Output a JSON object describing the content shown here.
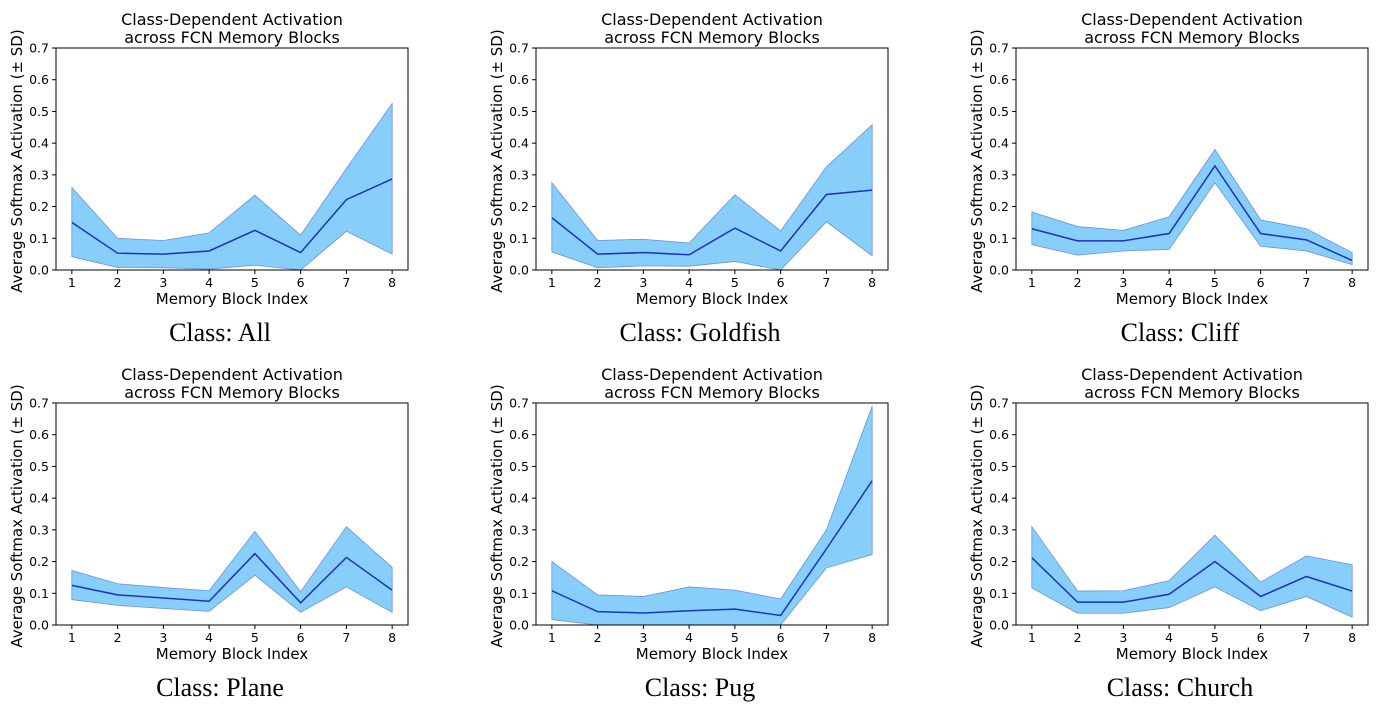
{
  "chart_data": [
    {
      "type": "line",
      "title": "Class-Dependent Activation\nacross FCN Memory Blocks",
      "xlabel": "Memory Block Index",
      "ylabel": "Average Softmax Activation (± SD)",
      "caption": "Class: All",
      "x": [
        1,
        2,
        3,
        4,
        5,
        6,
        7,
        8
      ],
      "ylim": [
        0.0,
        0.7
      ],
      "yticks": [
        "0.0",
        "0.1",
        "0.2",
        "0.3",
        "0.4",
        "0.5",
        "0.6",
        "0.7"
      ],
      "series": [
        {
          "mean": [
            0.15,
            0.053,
            0.05,
            0.06,
            0.125,
            0.055,
            0.222,
            0.287
          ],
          "upper": [
            0.26,
            0.1,
            0.093,
            0.117,
            0.236,
            0.11,
            0.32,
            0.525
          ],
          "lower": [
            0.042,
            0.008,
            0.007,
            0.003,
            0.015,
            0.0,
            0.122,
            0.05
          ]
        }
      ]
    },
    {
      "type": "line",
      "title": "Class-Dependent Activation\nacross FCN Memory Blocks",
      "xlabel": "Memory Block Index",
      "ylabel": "Average Softmax Activation (± SD)",
      "caption": "Class: Goldfish",
      "x": [
        1,
        2,
        3,
        4,
        5,
        6,
        7,
        8
      ],
      "ylim": [
        0.0,
        0.7
      ],
      "yticks": [
        "0.0",
        "0.1",
        "0.2",
        "0.3",
        "0.4",
        "0.5",
        "0.6",
        "0.7"
      ],
      "series": [
        {
          "mean": [
            0.165,
            0.05,
            0.055,
            0.048,
            0.132,
            0.06,
            0.238,
            0.252
          ],
          "upper": [
            0.275,
            0.093,
            0.097,
            0.085,
            0.237,
            0.123,
            0.325,
            0.458
          ],
          "lower": [
            0.057,
            0.007,
            0.013,
            0.012,
            0.027,
            0.0,
            0.152,
            0.045
          ]
        }
      ]
    },
    {
      "type": "line",
      "title": "Class-Dependent Activation\nacross FCN Memory Blocks",
      "xlabel": "Memory Block Index",
      "ylabel": "Average Softmax Activation (± SD)",
      "caption": "Class: Cliff",
      "x": [
        1,
        2,
        3,
        4,
        5,
        6,
        7,
        8
      ],
      "ylim": [
        0.0,
        0.7
      ],
      "yticks": [
        "0.0",
        "0.1",
        "0.2",
        "0.3",
        "0.4",
        "0.5",
        "0.6",
        "0.7"
      ],
      "series": [
        {
          "mean": [
            0.13,
            0.092,
            0.092,
            0.115,
            0.328,
            0.115,
            0.095,
            0.03
          ],
          "upper": [
            0.183,
            0.137,
            0.125,
            0.168,
            0.38,
            0.158,
            0.13,
            0.055
          ],
          "lower": [
            0.08,
            0.047,
            0.06,
            0.065,
            0.275,
            0.075,
            0.06,
            0.017
          ]
        }
      ]
    },
    {
      "type": "line",
      "title": "Class-Dependent Activation\nacross FCN Memory Blocks",
      "xlabel": "Memory Block Index",
      "ylabel": "Average Softmax Activation (± SD)",
      "caption": "Class: Plane",
      "x": [
        1,
        2,
        3,
        4,
        5,
        6,
        7,
        8
      ],
      "ylim": [
        0.0,
        0.7
      ],
      "yticks": [
        "0.0",
        "0.1",
        "0.2",
        "0.3",
        "0.4",
        "0.5",
        "0.6",
        "0.7"
      ],
      "series": [
        {
          "mean": [
            0.125,
            0.095,
            0.085,
            0.075,
            0.225,
            0.07,
            0.213,
            0.11
          ],
          "upper": [
            0.172,
            0.13,
            0.118,
            0.108,
            0.295,
            0.105,
            0.31,
            0.182
          ],
          "lower": [
            0.08,
            0.062,
            0.052,
            0.043,
            0.157,
            0.04,
            0.12,
            0.04
          ]
        }
      ]
    },
    {
      "type": "line",
      "title": "Class-Dependent Activation\nacross FCN Memory Blocks",
      "xlabel": "Memory Block Index",
      "ylabel": "Average Softmax Activation (± SD)",
      "caption": "Class: Pug",
      "x": [
        1,
        2,
        3,
        4,
        5,
        6,
        7,
        8
      ],
      "ylim": [
        0.0,
        0.7
      ],
      "yticks": [
        "0.0",
        "0.1",
        "0.2",
        "0.3",
        "0.4",
        "0.5",
        "0.6",
        "0.7"
      ],
      "series": [
        {
          "mean": [
            0.108,
            0.042,
            0.038,
            0.045,
            0.05,
            0.03,
            0.24,
            0.455
          ],
          "upper": [
            0.2,
            0.095,
            0.09,
            0.12,
            0.11,
            0.082,
            0.3,
            0.69
          ],
          "lower": [
            0.017,
            0.0,
            0.0,
            0.0,
            0.0,
            0.0,
            0.18,
            0.222
          ]
        }
      ]
    },
    {
      "type": "line",
      "title": "Class-Dependent Activation\nacross FCN Memory Blocks",
      "xlabel": "Memory Block Index",
      "ylabel": "Average Softmax Activation (± SD)",
      "caption": "Class: Church",
      "x": [
        1,
        2,
        3,
        4,
        5,
        6,
        7,
        8
      ],
      "ylim": [
        0.0,
        0.7
      ],
      "yticks": [
        "0.0",
        "0.1",
        "0.2",
        "0.3",
        "0.4",
        "0.5",
        "0.6",
        "0.7"
      ],
      "series": [
        {
          "mean": [
            0.212,
            0.072,
            0.072,
            0.097,
            0.2,
            0.09,
            0.153,
            0.107
          ],
          "upper": [
            0.31,
            0.107,
            0.108,
            0.14,
            0.283,
            0.135,
            0.218,
            0.19
          ],
          "lower": [
            0.117,
            0.037,
            0.037,
            0.055,
            0.12,
            0.045,
            0.09,
            0.025
          ]
        }
      ]
    }
  ],
  "colors": {
    "band": "#87cefa",
    "band_edge": "#6f8fdf",
    "line": "#1f2fbf",
    "axis": "#000000"
  }
}
